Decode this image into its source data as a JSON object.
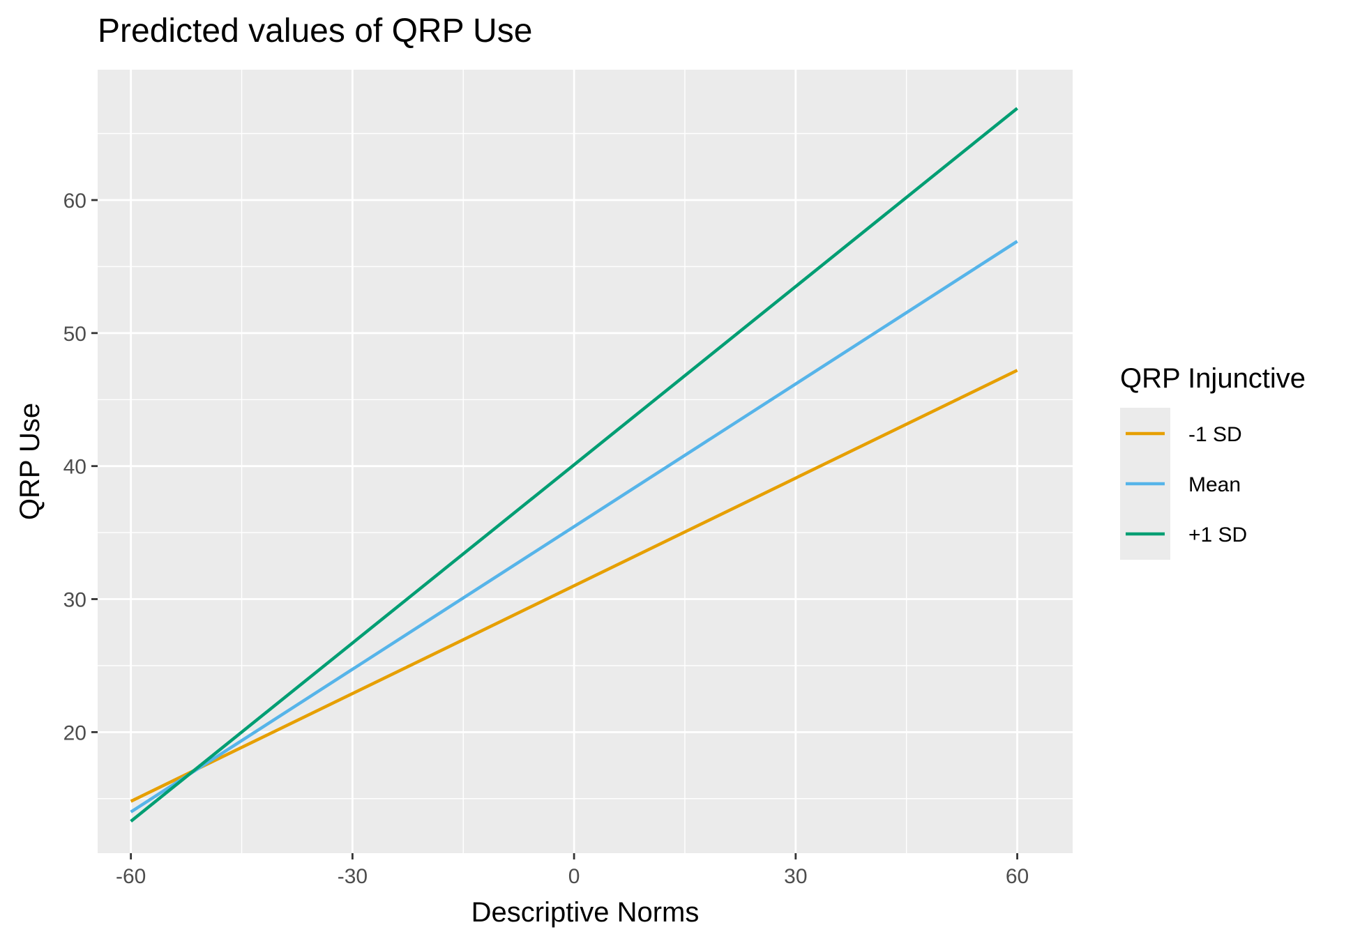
{
  "chart_data": {
    "type": "line",
    "title": "Predicted values of QRP Use",
    "xlabel": "Descriptive Norms",
    "ylabel": "QRP Use",
    "xlim": [
      -64.5,
      67.5
    ],
    "ylim": [
      10.9,
      69.8
    ],
    "x_ticks": [
      -60,
      -30,
      0,
      30,
      60
    ],
    "x_tick_labels": [
      "-60",
      "-30",
      "0",
      "30",
      "60"
    ],
    "y_ticks": [
      20,
      30,
      40,
      50,
      60
    ],
    "y_tick_labels": [
      "20",
      "30",
      "40",
      "50",
      "60"
    ],
    "grid": true,
    "legend": {
      "title": "QRP Injunctive",
      "position": "right"
    },
    "series": [
      {
        "name": "-1 SD",
        "color": "#E69F00",
        "x": [
          -60,
          60
        ],
        "y": [
          14.8,
          47.2
        ]
      },
      {
        "name": "Mean",
        "color": "#56B4E9",
        "x": [
          -60,
          60
        ],
        "y": [
          14.0,
          56.9
        ]
      },
      {
        "name": "+1 SD",
        "color": "#009E73",
        "x": [
          -60,
          60
        ],
        "y": [
          13.3,
          66.9
        ]
      }
    ]
  }
}
